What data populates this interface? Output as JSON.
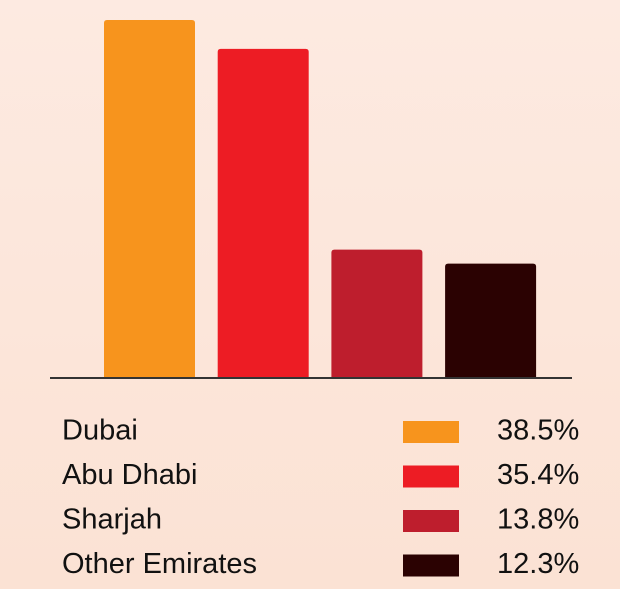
{
  "chart_data": {
    "type": "bar",
    "categories": [
      "Dubai",
      "Abu Dhabi",
      "Sharjah",
      "Other Emirates"
    ],
    "values": [
      38.5,
      35.4,
      13.8,
      12.3
    ],
    "value_labels": [
      "38.5%",
      "35.4%",
      "13.8%",
      "12.3%"
    ],
    "colors": [
      "#f7941d",
      "#ed1c24",
      "#be1e2d",
      "#2b0202"
    ],
    "legend": "bottom"
  }
}
